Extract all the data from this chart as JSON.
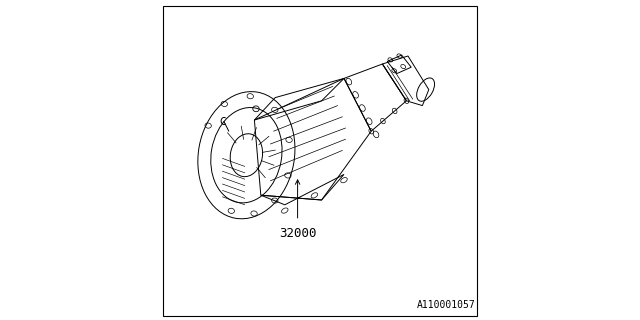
{
  "background_color": "#ffffff",
  "line_color": "#000000",
  "border_color": "#000000",
  "part_number": "32000",
  "reference_code": "A110001057",
  "part_number_fontsize": 9,
  "ref_code_fontsize": 7
}
